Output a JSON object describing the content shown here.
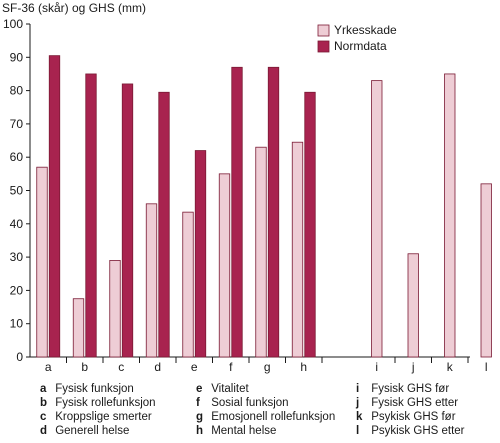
{
  "chart_data": {
    "type": "bar",
    "ylabel": "SF-36 (skår) og GHS (mm)",
    "ylim": [
      0,
      100
    ],
    "yticks": [
      0,
      10,
      20,
      30,
      40,
      50,
      60,
      70,
      80,
      90,
      100
    ],
    "categories": [
      "a",
      "b",
      "c",
      "d",
      "e",
      "f",
      "g",
      "h",
      "i",
      "j",
      "k",
      "l"
    ],
    "series": [
      {
        "name": "Yrkesskade",
        "color": "#eecdd5",
        "values": [
          57,
          17.5,
          29,
          46,
          43.5,
          55,
          63,
          64.5,
          83,
          31,
          85,
          52
        ]
      },
      {
        "name": "Normdata",
        "color": "#a8234f",
        "values": [
          90.5,
          85,
          82,
          79.5,
          62,
          87,
          87,
          79.5,
          null,
          null,
          null,
          null
        ]
      }
    ],
    "legend": "top-right",
    "grid": false
  },
  "key": {
    "columns": [
      [
        {
          "letter": "a",
          "text": "Fysisk funksjon"
        },
        {
          "letter": "b",
          "text": "Fysisk rollefunksjon"
        },
        {
          "letter": "c",
          "text": "Kroppslige smerter"
        },
        {
          "letter": "d",
          "text": "Generell helse"
        }
      ],
      [
        {
          "letter": "e",
          "text": "Vitalitet"
        },
        {
          "letter": "f",
          "text": "Sosial funksjon"
        },
        {
          "letter": "g",
          "text": "Emosjonell rollefunksjon"
        },
        {
          "letter": "h",
          "text": "Mental helse"
        }
      ],
      [
        {
          "letter": "i",
          "text": "Fysisk GHS før"
        },
        {
          "letter": "j",
          "text": "Fysisk GHS etter"
        },
        {
          "letter": "k",
          "text": "Psykisk GHS før"
        },
        {
          "letter": "l",
          "text": "Psykisk GHS etter"
        }
      ]
    ]
  },
  "colors": {
    "edge": "#7a1a34",
    "axis": "#1a1a1a"
  }
}
